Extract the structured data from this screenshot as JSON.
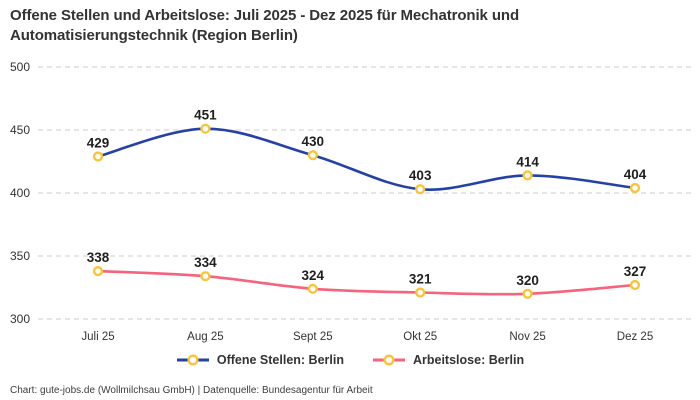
{
  "title": "Offene Stellen und Arbeitslose: Juli 2025 - Dez 2025 für Mechatronik und Automatisierungstechnik (Region Berlin)",
  "footer": "Chart: gute-jobs.de (Wollmilchsau GmbH) | Datenquelle: Bundesagentur für Arbeit",
  "chart_data": {
    "type": "line",
    "title": "Offene Stellen und Arbeitslose: Juli 2025 - Dez 2025 für Mechatronik und Automatisierungstechnik (Region Berlin)",
    "categories": [
      "Juli 25",
      "Aug 25",
      "Sept 25",
      "Okt 25",
      "Nov 25",
      "Dez 25"
    ],
    "series": [
      {
        "name": "Offene Stellen: Berlin",
        "values": [
          429,
          451,
          430,
          403,
          414,
          404
        ],
        "color": "#2441A8"
      },
      {
        "name": "Arbeitslose: Berlin",
        "values": [
          338,
          334,
          324,
          321,
          320,
          327
        ],
        "color": "#F5637C"
      }
    ],
    "marker_stroke": "#FBC437",
    "marker_fill": "#FFFFFF",
    "y_ticks": [
      300,
      350,
      400,
      450,
      500
    ],
    "ylim": [
      300,
      500
    ],
    "grid": "horizontal-dashed",
    "grid_color": "#CCCCCC",
    "data_labels": true,
    "legend_position": "bottom"
  },
  "legend": {
    "items": [
      {
        "label": "Offene Stellen: Berlin",
        "color": "#2441A8"
      },
      {
        "label": "Arbeitslose: Berlin",
        "color": "#F5637C"
      }
    ]
  }
}
